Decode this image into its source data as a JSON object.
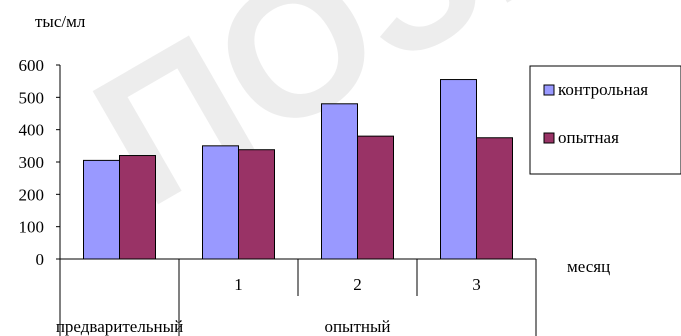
{
  "watermark": "ПОЗИТ",
  "chart_data": {
    "type": "bar",
    "ylabel": "тыс/мл",
    "xlabel": "месяц",
    "ylim": [
      0,
      600
    ],
    "yticks": [
      "0",
      "100",
      "200",
      "300",
      "400",
      "500",
      "600"
    ],
    "categories": [
      "",
      "1",
      "2",
      "3"
    ],
    "groups": [
      {
        "label": "предварительный",
        "span": 1
      },
      {
        "label": "опытный",
        "span": 3
      }
    ],
    "series": [
      {
        "name": "контрольная",
        "color": "#9999ff",
        "values": [
          305,
          350,
          480,
          555
        ]
      },
      {
        "name": "опытная",
        "color": "#993366",
        "values": [
          320,
          338,
          380,
          375
        ]
      }
    ],
    "legend": "right",
    "grid": false
  }
}
